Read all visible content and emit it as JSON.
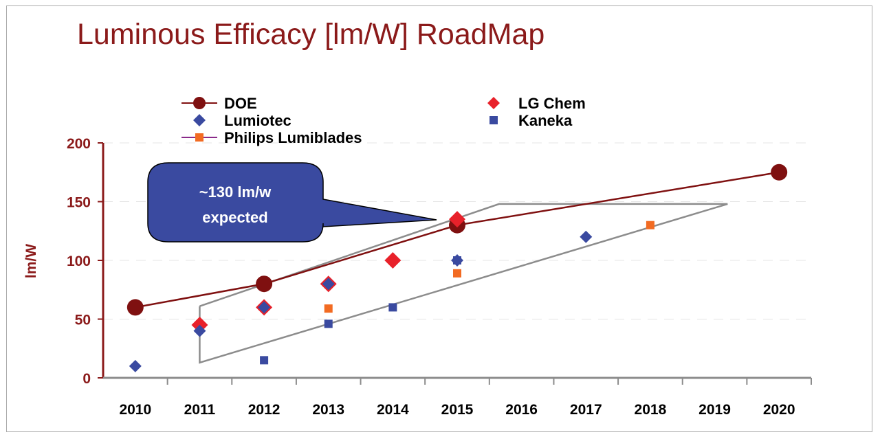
{
  "chart_data": {
    "type": "scatter",
    "title": "Luminous Efficacy [lm/W] RoadMap",
    "xlabel": "",
    "ylabel": "lm/W",
    "categories": [
      "2010",
      "2011",
      "2012",
      "2013",
      "2014",
      "2015",
      "2016",
      "2017",
      "2018",
      "2019",
      "2020"
    ],
    "ylim": [
      0,
      200
    ],
    "yticks": [
      "0",
      "50",
      "100",
      "150",
      "200"
    ],
    "grid": true,
    "legend_position": "top",
    "series": [
      {
        "name": "DOE",
        "marker": "circle",
        "line": true,
        "color": "#7f1010",
        "points": [
          {
            "x": "2010",
            "y": 60
          },
          {
            "x": "2012",
            "y": 80
          },
          {
            "x": "2015",
            "y": 130
          },
          {
            "x": "2020",
            "y": 175
          }
        ]
      },
      {
        "name": "Lumiotec",
        "marker": "diamond",
        "line": false,
        "color": "#3a4aa0",
        "points": [
          {
            "x": "2010",
            "y": 10
          },
          {
            "x": "2011",
            "y": 40
          },
          {
            "x": "2012",
            "y": 60
          },
          {
            "x": "2013",
            "y": 80
          },
          {
            "x": "2015",
            "y": 100
          },
          {
            "x": "2017",
            "y": 120
          }
        ]
      },
      {
        "name": "Philips Lumiblades",
        "marker": "square",
        "line": false,
        "color": "#f26b22",
        "points": [
          {
            "x": "2013",
            "y": 59
          },
          {
            "x": "2015",
            "y": 89
          },
          {
            "x": "2018",
            "y": 130
          }
        ]
      },
      {
        "name": "LG Chem",
        "marker": "diamond",
        "line": false,
        "color": "#e8212a",
        "points": [
          {
            "x": "2011",
            "y": 45
          },
          {
            "x": "2012",
            "y": 60
          },
          {
            "x": "2013",
            "y": 80
          },
          {
            "x": "2014",
            "y": 100
          },
          {
            "x": "2015",
            "y": 135
          }
        ]
      },
      {
        "name": "Kaneka",
        "marker": "square",
        "line": false,
        "color": "#3a4aa0",
        "points": [
          {
            "x": "2012",
            "y": 15
          },
          {
            "x": "2013",
            "y": 46
          },
          {
            "x": "2014",
            "y": 60
          },
          {
            "x": "2015",
            "y": 100
          }
        ]
      }
    ],
    "annotations": {
      "callout_line1": "~130 lm/w",
      "callout_line2": "expected",
      "callout_color": "#3a4aa0",
      "trend_band_color": "#8c8c8c",
      "trend_band": [
        {
          "x": 2011.0,
          "y": 61
        },
        {
          "x": 2011.0,
          "y": 13
        },
        {
          "x": 2019.2,
          "y": 148
        },
        {
          "x": 2015.65,
          "y": 148
        },
        {
          "x": 2011.0,
          "y": 61
        }
      ]
    }
  }
}
